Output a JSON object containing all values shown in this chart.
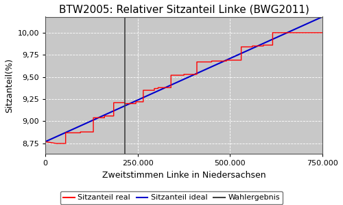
{
  "title": "BTW2005: Relativer Sitzanteil Linke (BWG2011)",
  "xlabel": "Zweitstimmen Linke in Niedersachsen",
  "ylabel": "Sitzanteil(%)",
  "xlim": [
    0,
    750000
  ],
  "ylim": [
    8.63,
    10.18
  ],
  "x_ticks": [
    0,
    250000,
    500000,
    750000
  ],
  "y_ticks": [
    8.75,
    9.0,
    9.25,
    9.5,
    9.75,
    10.0
  ],
  "bg_color": "#c8c8c8",
  "fig_bg_color": "#ffffff",
  "wahlergebnis_x": 215000,
  "ideal_start_y": 8.77,
  "ideal_end_y": 10.18,
  "real_steps": [
    [
      0,
      8.77
    ],
    [
      30000,
      8.75
    ],
    [
      55000,
      8.75
    ],
    [
      55000,
      8.87
    ],
    [
      95000,
      8.87
    ],
    [
      95000,
      8.88
    ],
    [
      130000,
      8.88
    ],
    [
      130000,
      9.04
    ],
    [
      160000,
      9.04
    ],
    [
      160000,
      9.06
    ],
    [
      185000,
      9.06
    ],
    [
      185000,
      9.21
    ],
    [
      215000,
      9.21
    ],
    [
      215000,
      9.2
    ],
    [
      245000,
      9.2
    ],
    [
      245000,
      9.22
    ],
    [
      265000,
      9.22
    ],
    [
      265000,
      9.35
    ],
    [
      295000,
      9.35
    ],
    [
      295000,
      9.37
    ],
    [
      305000,
      9.37
    ],
    [
      305000,
      9.38
    ],
    [
      340000,
      9.38
    ],
    [
      340000,
      9.52
    ],
    [
      375000,
      9.52
    ],
    [
      375000,
      9.53
    ],
    [
      410000,
      9.53
    ],
    [
      410000,
      9.67
    ],
    [
      450000,
      9.67
    ],
    [
      450000,
      9.68
    ],
    [
      490000,
      9.68
    ],
    [
      490000,
      9.69
    ],
    [
      530000,
      9.69
    ],
    [
      530000,
      9.84
    ],
    [
      560000,
      9.84
    ],
    [
      560000,
      9.85
    ],
    [
      590000,
      9.85
    ],
    [
      590000,
      9.86
    ],
    [
      615000,
      9.86
    ],
    [
      615000,
      10.0
    ],
    [
      750000,
      10.0
    ]
  ],
  "line_colors": {
    "real": "#ff0000",
    "ideal": "#0000cc",
    "wahlergebnis": "#404040"
  },
  "legend_labels": [
    "Sitzanteil real",
    "Sitzanteil ideal",
    "Wahlergebnis"
  ],
  "title_fontsize": 11,
  "axis_fontsize": 9,
  "tick_fontsize": 8,
  "legend_fontsize": 8
}
